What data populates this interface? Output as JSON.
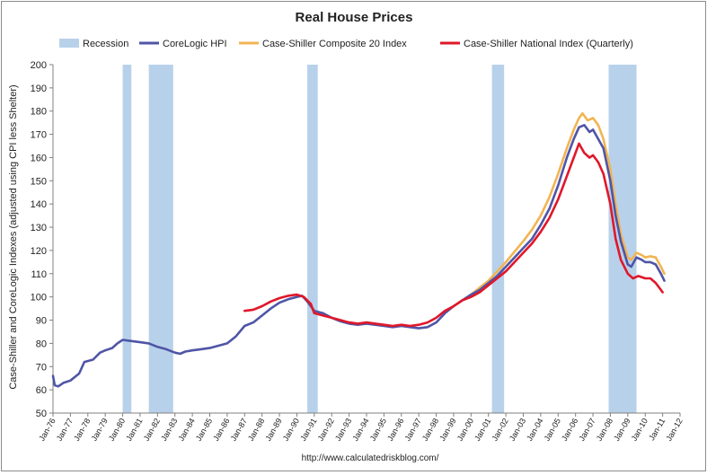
{
  "colors": {
    "recession": "#b8d1ea",
    "corelogic": "#4f55a6",
    "cs20": "#f2b452",
    "national": "#e0172a",
    "axis": "#808080",
    "text": "#222222"
  },
  "footer": "http://www.calculatedriskblog.com/",
  "chart_data": {
    "type": "line",
    "title": "Real House Prices",
    "ylabel": "Case-Shiller and CoreLogic Indexes (adjusted using CPI less Shelter)",
    "xlabel": "",
    "ylim": [
      50,
      200
    ],
    "yticks": [
      50,
      60,
      70,
      80,
      90,
      100,
      110,
      120,
      130,
      140,
      150,
      160,
      170,
      180,
      190,
      200
    ],
    "xlim": [
      1976.0,
      2012.0
    ],
    "xticks": [
      {
        "x": 1976,
        "label": "Jan-76"
      },
      {
        "x": 1977,
        "label": "Jan-77"
      },
      {
        "x": 1978,
        "label": "Jan-78"
      },
      {
        "x": 1979,
        "label": "Jan-79"
      },
      {
        "x": 1980,
        "label": "Jan-80"
      },
      {
        "x": 1981,
        "label": "Jan-81"
      },
      {
        "x": 1982,
        "label": "Jan-82"
      },
      {
        "x": 1983,
        "label": "Jan-83"
      },
      {
        "x": 1984,
        "label": "Jan-84"
      },
      {
        "x": 1985,
        "label": "Jan-85"
      },
      {
        "x": 1986,
        "label": "Jan-86"
      },
      {
        "x": 1987,
        "label": "Jan-87"
      },
      {
        "x": 1988,
        "label": "Jan-88"
      },
      {
        "x": 1989,
        "label": "Jan-89"
      },
      {
        "x": 1990,
        "label": "Jan-90"
      },
      {
        "x": 1991,
        "label": "Jan-91"
      },
      {
        "x": 1992,
        "label": "Jan-92"
      },
      {
        "x": 1993,
        "label": "Jan-93"
      },
      {
        "x": 1994,
        "label": "Jan-94"
      },
      {
        "x": 1995,
        "label": "Jan-95"
      },
      {
        "x": 1996,
        "label": "Jan-96"
      },
      {
        "x": 1997,
        "label": "Jan-97"
      },
      {
        "x": 1998,
        "label": "Jan-98"
      },
      {
        "x": 1999,
        "label": "Jan-99"
      },
      {
        "x": 2000,
        "label": "Jan-00"
      },
      {
        "x": 2001,
        "label": "Jan-01"
      },
      {
        "x": 2002,
        "label": "Jan-02"
      },
      {
        "x": 2003,
        "label": "Jan-03"
      },
      {
        "x": 2004,
        "label": "Jan-04"
      },
      {
        "x": 2005,
        "label": "Jan-05"
      },
      {
        "x": 2006,
        "label": "Jan-06"
      },
      {
        "x": 2007,
        "label": "Jan-07"
      },
      {
        "x": 2008,
        "label": "Jan-08"
      },
      {
        "x": 2009,
        "label": "Jan-09"
      },
      {
        "x": 2010,
        "label": "Jan-10"
      },
      {
        "x": 2011,
        "label": "Jan-11"
      },
      {
        "x": 2012,
        "label": "Jan-12"
      }
    ],
    "grid": false,
    "legend_position": "top",
    "recessions": [
      {
        "name": "Recession",
        "start": 1980.0,
        "end": 1980.5
      },
      {
        "name": "Recession",
        "start": 1981.5,
        "end": 1982.9
      },
      {
        "name": "Recession",
        "start": 1990.6,
        "end": 1991.2
      },
      {
        "name": "Recession",
        "start": 2001.2,
        "end": 2001.9
      },
      {
        "name": "Recession",
        "start": 2007.9,
        "end": 2009.5
      }
    ],
    "legend": [
      "Recession",
      "CoreLogic HPI",
      "Case-Shiller Composite 20 Index",
      "Case-Shiller National Index (Quarterly)"
    ],
    "series": [
      {
        "name": "CoreLogic HPI",
        "color": "#4f55a6",
        "points": [
          [
            1976.0,
            66
          ],
          [
            1976.1,
            62
          ],
          [
            1976.3,
            61.5
          ],
          [
            1976.6,
            63
          ],
          [
            1977.0,
            64
          ],
          [
            1977.5,
            67
          ],
          [
            1977.8,
            72
          ],
          [
            1978.3,
            73
          ],
          [
            1978.7,
            76
          ],
          [
            1979.0,
            77
          ],
          [
            1979.4,
            78
          ],
          [
            1979.7,
            80
          ],
          [
            1980.0,
            81.5
          ],
          [
            1980.5,
            81
          ],
          [
            1981.0,
            80.5
          ],
          [
            1981.5,
            80
          ],
          [
            1982.0,
            78.5
          ],
          [
            1982.5,
            77.5
          ],
          [
            1983.0,
            76
          ],
          [
            1983.3,
            75.5
          ],
          [
            1983.6,
            76.5
          ],
          [
            1984.0,
            77
          ],
          [
            1984.5,
            77.5
          ],
          [
            1985.0,
            78
          ],
          [
            1985.5,
            79
          ],
          [
            1986.0,
            80
          ],
          [
            1986.5,
            83
          ],
          [
            1987.0,
            87.5
          ],
          [
            1987.5,
            89
          ],
          [
            1988.0,
            92
          ],
          [
            1988.5,
            95
          ],
          [
            1989.0,
            97.5
          ],
          [
            1989.5,
            99
          ],
          [
            1990.0,
            100
          ],
          [
            1990.3,
            100.5
          ],
          [
            1990.6,
            98
          ],
          [
            1991.0,
            94
          ],
          [
            1991.5,
            93
          ],
          [
            1992.0,
            91
          ],
          [
            1992.5,
            89.5
          ],
          [
            1993.0,
            88.5
          ],
          [
            1993.5,
            88
          ],
          [
            1994.0,
            88.5
          ],
          [
            1994.5,
            88
          ],
          [
            1995.0,
            87.5
          ],
          [
            1995.5,
            87
          ],
          [
            1996.0,
            87.5
          ],
          [
            1996.5,
            87
          ],
          [
            1997.0,
            86.5
          ],
          [
            1997.5,
            87
          ],
          [
            1998.0,
            89
          ],
          [
            1998.5,
            93
          ],
          [
            1999.0,
            96
          ],
          [
            1999.5,
            98.5
          ],
          [
            2000.0,
            101
          ],
          [
            2000.5,
            103
          ],
          [
            2001.0,
            106
          ],
          [
            2001.5,
            109
          ],
          [
            2002.0,
            113
          ],
          [
            2002.5,
            117
          ],
          [
            2003.0,
            121
          ],
          [
            2003.5,
            125
          ],
          [
            2004.0,
            131
          ],
          [
            2004.5,
            138
          ],
          [
            2005.0,
            148
          ],
          [
            2005.5,
            160
          ],
          [
            2005.9,
            168
          ],
          [
            2006.2,
            173
          ],
          [
            2006.5,
            174
          ],
          [
            2006.8,
            171
          ],
          [
            2007.0,
            172
          ],
          [
            2007.3,
            168
          ],
          [
            2007.6,
            164
          ],
          [
            2008.0,
            150
          ],
          [
            2008.3,
            135
          ],
          [
            2008.6,
            124
          ],
          [
            2009.0,
            114
          ],
          [
            2009.2,
            113
          ],
          [
            2009.5,
            117
          ],
          [
            2009.8,
            116
          ],
          [
            2010.0,
            115
          ],
          [
            2010.3,
            115
          ],
          [
            2010.6,
            114
          ],
          [
            2010.9,
            110
          ],
          [
            2011.1,
            107
          ]
        ]
      },
      {
        "name": "Case-Shiller Composite 20 Index",
        "color": "#f2b452",
        "points": [
          [
            2000.0,
            101
          ],
          [
            2000.5,
            104
          ],
          [
            2001.0,
            107
          ],
          [
            2001.5,
            111
          ],
          [
            2002.0,
            115
          ],
          [
            2002.5,
            119.5
          ],
          [
            2003.0,
            124
          ],
          [
            2003.5,
            129
          ],
          [
            2004.0,
            135
          ],
          [
            2004.5,
            143
          ],
          [
            2005.0,
            153
          ],
          [
            2005.5,
            164
          ],
          [
            2005.9,
            172
          ],
          [
            2006.2,
            177
          ],
          [
            2006.4,
            179
          ],
          [
            2006.7,
            176
          ],
          [
            2007.0,
            177
          ],
          [
            2007.3,
            174
          ],
          [
            2007.6,
            168
          ],
          [
            2008.0,
            155
          ],
          [
            2008.3,
            140
          ],
          [
            2008.6,
            127
          ],
          [
            2009.0,
            117
          ],
          [
            2009.2,
            116
          ],
          [
            2009.5,
            119
          ],
          [
            2009.8,
            118
          ],
          [
            2010.0,
            117
          ],
          [
            2010.3,
            117.5
          ],
          [
            2010.6,
            117
          ],
          [
            2010.9,
            113
          ],
          [
            2011.1,
            110
          ]
        ]
      },
      {
        "name": "Case-Shiller National Index (Quarterly)",
        "color": "#e0172a",
        "points": [
          [
            1987.0,
            94
          ],
          [
            1987.5,
            94.5
          ],
          [
            1988.0,
            96
          ],
          [
            1988.5,
            98
          ],
          [
            1989.0,
            99.5
          ],
          [
            1989.5,
            100.5
          ],
          [
            1990.0,
            101
          ],
          [
            1990.4,
            100
          ],
          [
            1990.8,
            97
          ],
          [
            1991.0,
            93
          ],
          [
            1991.5,
            92
          ],
          [
            1992.0,
            91
          ],
          [
            1992.5,
            90
          ],
          [
            1993.0,
            89
          ],
          [
            1993.5,
            88.5
          ],
          [
            1994.0,
            89
          ],
          [
            1994.5,
            88.5
          ],
          [
            1995.0,
            88
          ],
          [
            1995.5,
            87.5
          ],
          [
            1996.0,
            88
          ],
          [
            1996.5,
            87.5
          ],
          [
            1997.0,
            88
          ],
          [
            1997.5,
            89
          ],
          [
            1998.0,
            91
          ],
          [
            1998.5,
            94
          ],
          [
            1999.0,
            96
          ],
          [
            1999.5,
            98.5
          ],
          [
            2000.0,
            100
          ],
          [
            2000.5,
            102
          ],
          [
            2001.0,
            105
          ],
          [
            2001.5,
            108
          ],
          [
            2002.0,
            111
          ],
          [
            2002.5,
            115
          ],
          [
            2003.0,
            119
          ],
          [
            2003.5,
            123
          ],
          [
            2004.0,
            128
          ],
          [
            2004.5,
            134
          ],
          [
            2005.0,
            142
          ],
          [
            2005.5,
            152
          ],
          [
            2005.9,
            160
          ],
          [
            2006.2,
            166
          ],
          [
            2006.5,
            162
          ],
          [
            2006.8,
            160
          ],
          [
            2007.0,
            161
          ],
          [
            2007.3,
            158
          ],
          [
            2007.6,
            153
          ],
          [
            2008.0,
            140
          ],
          [
            2008.3,
            125
          ],
          [
            2008.6,
            116
          ],
          [
            2009.0,
            110
          ],
          [
            2009.3,
            108
          ],
          [
            2009.6,
            109
          ],
          [
            2010.0,
            108
          ],
          [
            2010.3,
            108
          ],
          [
            2010.6,
            106
          ],
          [
            2010.9,
            103
          ],
          [
            2011.0,
            102
          ]
        ]
      }
    ]
  }
}
